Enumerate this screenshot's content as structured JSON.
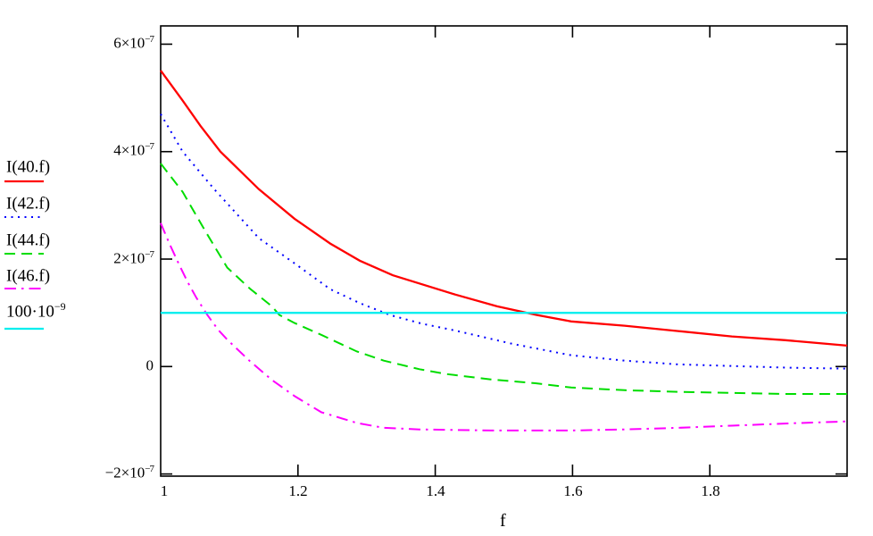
{
  "chart_data": {
    "type": "line",
    "title": "",
    "xlabel": "f",
    "ylabel": "",
    "xlim": [
      1.0,
      2.0
    ],
    "ylim_e7": [
      -2.04,
      6.34
    ],
    "y_unit": "1e-7",
    "grid": false,
    "legend_position": "left-outside",
    "x_ticks": [
      {
        "f": 1.0,
        "label": "1",
        "has_tick": false
      },
      {
        "f": 1.2,
        "label": "1.2",
        "has_tick": true
      },
      {
        "f": 1.4,
        "label": "1.4",
        "has_tick": true
      },
      {
        "f": 1.6,
        "label": "1.6",
        "has_tick": true
      },
      {
        "f": 1.8,
        "label": "1.8",
        "has_tick": true
      }
    ],
    "y_ticks": [
      {
        "v": 6,
        "base": "6×10",
        "exp": "−7"
      },
      {
        "v": 4,
        "base": "4×10",
        "exp": "−7"
      },
      {
        "v": 2,
        "base": "2×10",
        "exp": "−7"
      },
      {
        "v": 0,
        "base": "0",
        "exp": ""
      },
      {
        "v": -2,
        "base": "−2×10",
        "exp": "−7"
      }
    ],
    "series": [
      {
        "name": "I(40.f)",
        "color": "#ff0000",
        "style": "solid",
        "points": [
          [
            1.0,
            5.51
          ],
          [
            1.032,
            4.95
          ],
          [
            1.058,
            4.48
          ],
          [
            1.087,
            4.0
          ],
          [
            1.143,
            3.3
          ],
          [
            1.195,
            2.75
          ],
          [
            1.247,
            2.29
          ],
          [
            1.29,
            1.97
          ],
          [
            1.338,
            1.7
          ],
          [
            1.429,
            1.34
          ],
          [
            1.49,
            1.12
          ],
          [
            1.548,
            0.96
          ],
          [
            1.598,
            0.84
          ],
          [
            1.676,
            0.76
          ],
          [
            1.754,
            0.66
          ],
          [
            1.832,
            0.56
          ],
          [
            1.91,
            0.49
          ],
          [
            2.0,
            0.39
          ]
        ]
      },
      {
        "name": "I(42.f)",
        "color": "#0000ff",
        "style": "dotted",
        "points": [
          [
            1.0,
            4.7
          ],
          [
            1.032,
            4.0
          ],
          [
            1.078,
            3.3
          ],
          [
            1.143,
            2.39
          ],
          [
            1.195,
            1.92
          ],
          [
            1.247,
            1.44
          ],
          [
            1.29,
            1.18
          ],
          [
            1.334,
            0.96
          ],
          [
            1.38,
            0.8
          ],
          [
            1.429,
            0.67
          ],
          [
            1.513,
            0.42
          ],
          [
            1.598,
            0.21
          ],
          [
            1.676,
            0.11
          ],
          [
            1.754,
            0.04
          ],
          [
            1.832,
            0.01
          ],
          [
            1.91,
            -0.02
          ],
          [
            2.0,
            -0.04
          ]
        ]
      },
      {
        "name": "I(44.f)",
        "color": "#00dd00",
        "style": "dashed",
        "points": [
          [
            1.0,
            3.78
          ],
          [
            1.032,
            3.25
          ],
          [
            1.065,
            2.52
          ],
          [
            1.097,
            1.84
          ],
          [
            1.13,
            1.45
          ],
          [
            1.162,
            1.12
          ],
          [
            1.173,
            0.96
          ],
          [
            1.195,
            0.81
          ],
          [
            1.234,
            0.59
          ],
          [
            1.286,
            0.28
          ],
          [
            1.325,
            0.11
          ],
          [
            1.377,
            -0.05
          ],
          [
            1.416,
            -0.14
          ],
          [
            1.481,
            -0.24
          ],
          [
            1.546,
            -0.31
          ],
          [
            1.598,
            -0.39
          ],
          [
            1.676,
            -0.44
          ],
          [
            1.754,
            -0.47
          ],
          [
            1.832,
            -0.49
          ],
          [
            1.91,
            -0.51
          ],
          [
            2.0,
            -0.51
          ]
        ]
      },
      {
        "name": "I(46.f)",
        "color": "#ff00ff",
        "style": "dashdot",
        "points": [
          [
            1.0,
            2.67
          ],
          [
            1.013,
            2.28
          ],
          [
            1.026,
            1.92
          ],
          [
            1.039,
            1.58
          ],
          [
            1.052,
            1.28
          ],
          [
            1.068,
            0.96
          ],
          [
            1.084,
            0.68
          ],
          [
            1.097,
            0.5
          ],
          [
            1.13,
            0.1
          ],
          [
            1.162,
            -0.25
          ],
          [
            1.195,
            -0.55
          ],
          [
            1.234,
            -0.85
          ],
          [
            1.286,
            -1.05
          ],
          [
            1.325,
            -1.14
          ],
          [
            1.377,
            -1.17
          ],
          [
            1.429,
            -1.18
          ],
          [
            1.481,
            -1.19
          ],
          [
            1.546,
            -1.19
          ],
          [
            1.598,
            -1.19
          ],
          [
            1.676,
            -1.17
          ],
          [
            1.754,
            -1.14
          ],
          [
            1.832,
            -1.1
          ],
          [
            1.91,
            -1.06
          ],
          [
            2.0,
            -1.02
          ]
        ]
      },
      {
        "name": "100·10⁻⁹",
        "color": "#00eeee",
        "style": "solid",
        "points": [
          [
            1.0,
            1.0
          ],
          [
            2.0,
            1.0
          ]
        ]
      }
    ],
    "legend": [
      {
        "base": "I(40.f)",
        "exp": "",
        "series": 0
      },
      {
        "base": "I(42.f)",
        "exp": "",
        "series": 1
      },
      {
        "base": "I(44.f)",
        "exp": "",
        "series": 2
      },
      {
        "base": "I(46.f)",
        "exp": "",
        "series": 3
      },
      {
        "base": "100·10",
        "exp": "−9",
        "series": 4
      }
    ]
  }
}
